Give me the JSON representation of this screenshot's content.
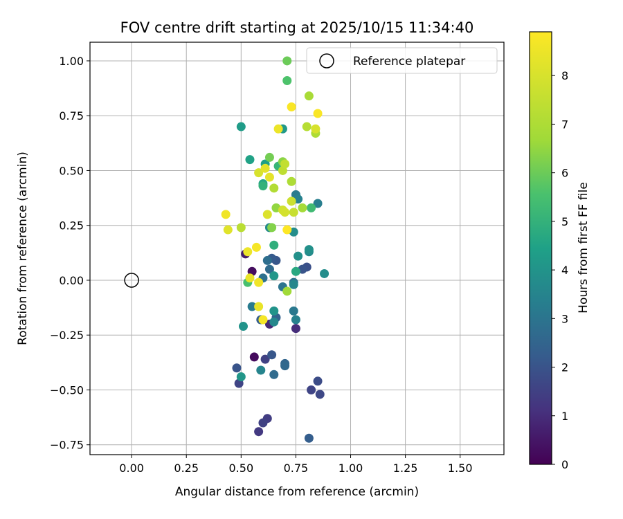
{
  "chart_data": {
    "type": "scatter",
    "title": "FOV centre drift starting at 2025/10/15 11:34:40",
    "xlabel": "Angular distance from reference (arcmin)",
    "ylabel": "Rotation from reference (arcmin)",
    "xlim": [
      -0.19,
      1.7
    ],
    "ylim": [
      -0.795,
      1.085
    ],
    "xticks": [
      0.0,
      0.25,
      0.5,
      0.75,
      1.0,
      1.25,
      1.5
    ],
    "xtick_labels": [
      "0.00",
      "0.25",
      "0.50",
      "0.75",
      "1.00",
      "1.25",
      "1.50"
    ],
    "yticks": [
      -0.75,
      -0.5,
      -0.25,
      0.0,
      0.25,
      0.5,
      0.75,
      1.0
    ],
    "ytick_labels": [
      "−0.75",
      "−0.50",
      "−0.25",
      "0.00",
      "0.25",
      "0.50",
      "0.75",
      "1.00"
    ],
    "grid": true,
    "colormap": "viridis",
    "colorbar": {
      "label": "Hours from first FF file",
      "min": 0,
      "max": 8.9,
      "ticks": [
        0,
        1,
        2,
        3,
        4,
        5,
        6,
        7,
        8
      ],
      "tick_labels": [
        "0",
        "1",
        "2",
        "3",
        "4",
        "5",
        "6",
        "7",
        "8"
      ]
    },
    "legend": {
      "position": "top-right",
      "entries": [
        {
          "label": "Reference platepar",
          "marker": "open-circle"
        }
      ]
    },
    "reference_point": {
      "x": 0.0,
      "y": 0.0
    },
    "points": [
      {
        "x": 0.56,
        "y": -0.35,
        "h": 0.2
      },
      {
        "x": 0.55,
        "y": 0.04,
        "h": 0.3
      },
      {
        "x": 0.52,
        "y": 0.12,
        "h": 0.6
      },
      {
        "x": 0.63,
        "y": -0.2,
        "h": 0.9
      },
      {
        "x": 0.75,
        "y": -0.22,
        "h": 1.0
      },
      {
        "x": 0.58,
        "y": -0.69,
        "h": 1.3
      },
      {
        "x": 0.62,
        "y": -0.63,
        "h": 1.4
      },
      {
        "x": 0.6,
        "y": -0.65,
        "h": 1.5
      },
      {
        "x": 0.61,
        "y": -0.36,
        "h": 1.5
      },
      {
        "x": 0.49,
        "y": -0.47,
        "h": 1.6
      },
      {
        "x": 0.82,
        "y": -0.5,
        "h": 1.6
      },
      {
        "x": 0.86,
        "y": -0.52,
        "h": 1.7
      },
      {
        "x": 0.85,
        "y": -0.46,
        "h": 1.8
      },
      {
        "x": 0.8,
        "y": 0.06,
        "h": 1.9
      },
      {
        "x": 0.78,
        "y": 0.05,
        "h": 2.0
      },
      {
        "x": 0.48,
        "y": -0.4,
        "h": 2.0
      },
      {
        "x": 0.64,
        "y": -0.34,
        "h": 2.1
      },
      {
        "x": 0.66,
        "y": 0.09,
        "h": 2.1
      },
      {
        "x": 0.64,
        "y": 0.1,
        "h": 2.2
      },
      {
        "x": 0.81,
        "y": -0.72,
        "h": 2.3
      },
      {
        "x": 0.59,
        "y": -0.18,
        "h": 2.3
      },
      {
        "x": 0.66,
        "y": -0.17,
        "h": 2.4
      },
      {
        "x": 0.7,
        "y": -0.38,
        "h": 2.5
      },
      {
        "x": 0.7,
        "y": -0.39,
        "h": 2.6
      },
      {
        "x": 0.65,
        "y": -0.43,
        "h": 2.7
      },
      {
        "x": 0.63,
        "y": 0.05,
        "h": 2.7
      },
      {
        "x": 0.62,
        "y": 0.09,
        "h": 2.8
      },
      {
        "x": 0.6,
        "y": 0.01,
        "h": 2.9
      },
      {
        "x": 0.74,
        "y": -0.01,
        "h": 3.0
      },
      {
        "x": 0.69,
        "y": -0.03,
        "h": 3.0
      },
      {
        "x": 0.74,
        "y": -0.14,
        "h": 3.1
      },
      {
        "x": 0.55,
        "y": -0.12,
        "h": 3.2
      },
      {
        "x": 0.75,
        "y": 0.39,
        "h": 3.2
      },
      {
        "x": 0.85,
        "y": 0.35,
        "h": 3.3
      },
      {
        "x": 0.76,
        "y": 0.37,
        "h": 3.4
      },
      {
        "x": 0.75,
        "y": -0.18,
        "h": 3.4
      },
      {
        "x": 0.59,
        "y": -0.41,
        "h": 3.5
      },
      {
        "x": 0.65,
        "y": -0.19,
        "h": 3.6
      },
      {
        "x": 0.74,
        "y": -0.02,
        "h": 3.6
      },
      {
        "x": 0.63,
        "y": 0.24,
        "h": 3.7
      },
      {
        "x": 0.81,
        "y": 0.13,
        "h": 3.7
      },
      {
        "x": 0.74,
        "y": 0.22,
        "h": 3.8
      },
      {
        "x": 0.88,
        "y": 0.03,
        "h": 3.8
      },
      {
        "x": 0.81,
        "y": 0.14,
        "h": 3.9
      },
      {
        "x": 0.76,
        "y": 0.11,
        "h": 3.9
      },
      {
        "x": 0.51,
        "y": -0.21,
        "h": 4.0
      },
      {
        "x": 0.65,
        "y": -0.14,
        "h": 4.0
      },
      {
        "x": 0.5,
        "y": -0.44,
        "h": 4.1
      },
      {
        "x": 0.65,
        "y": 0.02,
        "h": 4.1
      },
      {
        "x": 0.69,
        "y": 0.69,
        "h": 4.2
      },
      {
        "x": 0.5,
        "y": 0.7,
        "h": 4.3
      },
      {
        "x": 0.61,
        "y": 0.53,
        "h": 4.4
      },
      {
        "x": 0.54,
        "y": 0.55,
        "h": 4.5
      },
      {
        "x": 0.6,
        "y": 0.44,
        "h": 4.6
      },
      {
        "x": 0.75,
        "y": 0.04,
        "h": 4.7
      },
      {
        "x": 0.65,
        "y": 0.16,
        "h": 4.9
      },
      {
        "x": 0.6,
        "y": 0.43,
        "h": 5.0
      },
      {
        "x": 0.67,
        "y": 0.52,
        "h": 5.1
      },
      {
        "x": 0.82,
        "y": 0.33,
        "h": 5.3
      },
      {
        "x": 0.53,
        "y": -0.01,
        "h": 5.5
      },
      {
        "x": 0.71,
        "y": 0.91,
        "h": 5.6
      },
      {
        "x": 0.71,
        "y": 1.0,
        "h": 6.0
      },
      {
        "x": 0.63,
        "y": 0.56,
        "h": 6.1
      },
      {
        "x": 0.64,
        "y": 0.24,
        "h": 6.3
      },
      {
        "x": 0.69,
        "y": 0.54,
        "h": 6.4
      },
      {
        "x": 0.66,
        "y": 0.33,
        "h": 6.5
      },
      {
        "x": 0.71,
        "y": -0.05,
        "h": 6.7
      },
      {
        "x": 0.78,
        "y": 0.33,
        "h": 6.8
      },
      {
        "x": 0.81,
        "y": 0.84,
        "h": 6.9
      },
      {
        "x": 0.84,
        "y": 0.67,
        "h": 7.0
      },
      {
        "x": 0.73,
        "y": 0.45,
        "h": 7.0
      },
      {
        "x": 0.65,
        "y": 0.42,
        "h": 7.1
      },
      {
        "x": 0.8,
        "y": 0.7,
        "h": 7.2
      },
      {
        "x": 0.5,
        "y": 0.24,
        "h": 7.3
      },
      {
        "x": 0.69,
        "y": 0.5,
        "h": 7.4
      },
      {
        "x": 0.7,
        "y": 0.53,
        "h": 7.5
      },
      {
        "x": 0.74,
        "y": 0.31,
        "h": 7.6
      },
      {
        "x": 0.73,
        "y": 0.36,
        "h": 7.7
      },
      {
        "x": 0.69,
        "y": 0.32,
        "h": 7.8
      },
      {
        "x": 0.7,
        "y": 0.31,
        "h": 7.9
      },
      {
        "x": 0.84,
        "y": 0.69,
        "h": 8.0
      },
      {
        "x": 0.58,
        "y": 0.49,
        "h": 8.0
      },
      {
        "x": 0.62,
        "y": 0.3,
        "h": 8.1
      },
      {
        "x": 0.44,
        "y": 0.23,
        "h": 8.2
      },
      {
        "x": 0.61,
        "y": 0.51,
        "h": 8.3
      },
      {
        "x": 0.63,
        "y": 0.47,
        "h": 8.3
      },
      {
        "x": 0.54,
        "y": 0.01,
        "h": 8.4
      },
      {
        "x": 0.58,
        "y": -0.12,
        "h": 8.4
      },
      {
        "x": 0.67,
        "y": 0.69,
        "h": 8.5
      },
      {
        "x": 0.53,
        "y": 0.13,
        "h": 8.5
      },
      {
        "x": 0.43,
        "y": 0.3,
        "h": 8.6
      },
      {
        "x": 0.58,
        "y": -0.01,
        "h": 8.6
      },
      {
        "x": 0.57,
        "y": 0.15,
        "h": 8.7
      },
      {
        "x": 0.6,
        "y": -0.18,
        "h": 8.7
      },
      {
        "x": 0.73,
        "y": 0.79,
        "h": 8.8
      },
      {
        "x": 0.85,
        "y": 0.76,
        "h": 8.8
      },
      {
        "x": 0.71,
        "y": 0.23,
        "h": 8.9
      }
    ]
  }
}
